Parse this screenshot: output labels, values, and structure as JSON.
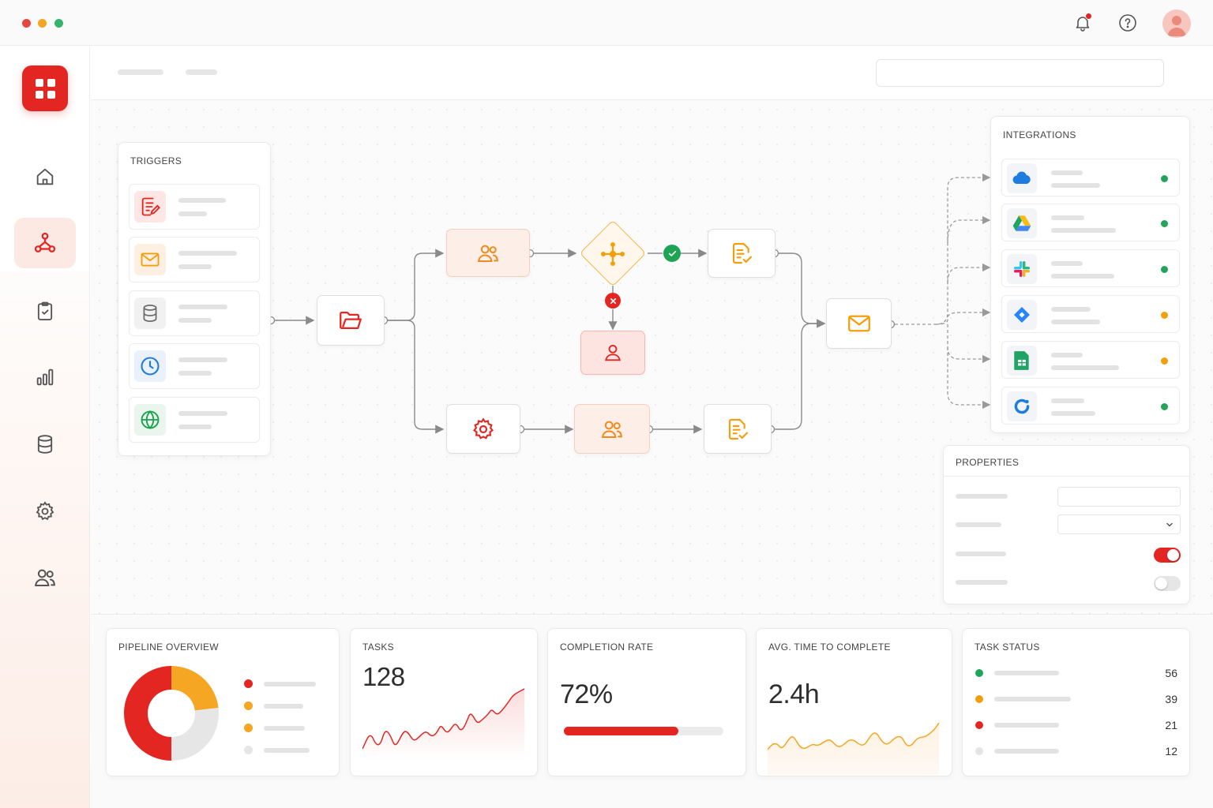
{
  "window": {
    "controls": [
      "close",
      "minimize",
      "maximize"
    ],
    "icons": [
      "bell-icon",
      "help-icon",
      "avatar"
    ],
    "notification_badge": true
  },
  "sidebar": {
    "items": [
      {
        "icon": "home-icon"
      },
      {
        "icon": "workflow-icon",
        "active": true
      },
      {
        "icon": "clipboard-check-icon"
      },
      {
        "icon": "bar-chart-icon"
      },
      {
        "icon": "database-icon"
      },
      {
        "icon": "settings-icon"
      },
      {
        "icon": "users-icon"
      }
    ]
  },
  "triggers": {
    "title": "TRIGGERS",
    "items": [
      {
        "icon": "form-icon",
        "color": "#e32622"
      },
      {
        "icon": "mail-icon",
        "color": "#f59e0b"
      },
      {
        "icon": "database-icon",
        "color": "#6b6b6b"
      },
      {
        "icon": "clock-icon",
        "color": "#1e7be0"
      },
      {
        "icon": "globe-icon",
        "color": "#16a34a"
      }
    ]
  },
  "workflow": {
    "nodes": [
      "folder-icon",
      "users-icon",
      "decision-hub-icon",
      "task-check-icon",
      "user-icon",
      "gear-icon",
      "users-icon",
      "task-check-icon",
      "mail-icon"
    ],
    "branch_status": {
      "approved": "check",
      "rejected": "x"
    }
  },
  "integrations": {
    "title": "INTEGRATIONS",
    "items": [
      {
        "icon": "cloud-icon",
        "status_color": "#22a55a"
      },
      {
        "icon": "google-drive-icon",
        "status_color": "#22a55a"
      },
      {
        "icon": "slack-icon",
        "status_color": "#22a55a"
      },
      {
        "icon": "jira-icon",
        "status_color": "#f59e0b"
      },
      {
        "icon": "google-sheets-icon",
        "status_color": "#f59e0b"
      },
      {
        "icon": "sync-icon",
        "status_color": "#22a55a"
      }
    ]
  },
  "properties": {
    "title": "PROPERTIES",
    "toggles": [
      true,
      false
    ]
  },
  "cards": {
    "pipeline": {
      "title": "PIPELINE OVERVIEW",
      "segments": [
        {
          "color": "#e32622",
          "value": 0.5
        },
        {
          "color": "#f5a623",
          "value": 0.23
        },
        {
          "color": "#e6e6e6",
          "value": 0.27
        }
      ],
      "legend_colors": [
        "#e32622",
        "#f5a623",
        "#f5a623",
        "#e6e6e6"
      ]
    },
    "tasks": {
      "title": "TASKS",
      "value": "128"
    },
    "completion": {
      "title": "COMPLETION RATE",
      "value": "72%",
      "progress": 0.72
    },
    "avg_time": {
      "title": "AVG. TIME TO COMPLETE",
      "value": "2.4h"
    },
    "task_status": {
      "title": "TASK STATUS",
      "rows": [
        {
          "color": "#22a55a",
          "count": "56"
        },
        {
          "color": "#f59e0b",
          "count": "39"
        },
        {
          "color": "#e32622",
          "count": "21"
        },
        {
          "color": "#e3e3e3",
          "count": "12"
        }
      ]
    }
  },
  "colors": {
    "accent": "#e32622",
    "warning": "#f59e0b",
    "success": "#22a55a"
  }
}
